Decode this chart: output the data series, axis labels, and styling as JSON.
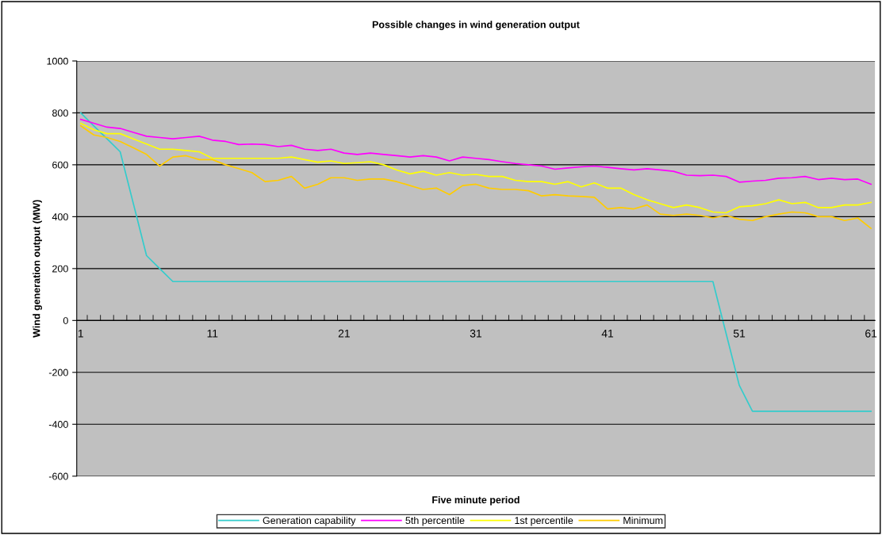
{
  "chart_data": {
    "type": "line",
    "title": "Possible changes in wind generation output",
    "xlabel": "Five minute period",
    "ylabel": "Wind generation output (MW)",
    "categories": [
      "1",
      null,
      null,
      null,
      null,
      null,
      null,
      null,
      null,
      null,
      "11",
      null,
      null,
      null,
      null,
      null,
      null,
      null,
      null,
      null,
      "21",
      null,
      null,
      null,
      null,
      null,
      null,
      null,
      null,
      null,
      "31",
      null,
      null,
      null,
      null,
      null,
      null,
      null,
      null,
      null,
      "41",
      null,
      null,
      null,
      null,
      null,
      null,
      null,
      null,
      null,
      "51",
      null,
      null,
      null,
      null,
      null,
      null,
      null,
      null,
      null,
      "61"
    ],
    "ylim": [
      -600,
      1000
    ],
    "yticks": [
      -600,
      -400,
      -200,
      0,
      200,
      400,
      600,
      800,
      1000
    ],
    "grid": "y",
    "legend": "bottom",
    "marker": "none",
    "line_style": "solid",
    "series": [
      {
        "name": "Generation capability",
        "color": "#33cccc",
        "values": [
          800,
          750,
          700,
          650,
          450,
          250,
          200,
          150,
          150,
          150,
          150,
          150,
          150,
          150,
          150,
          150,
          150,
          150,
          150,
          150,
          150,
          150,
          150,
          150,
          150,
          150,
          150,
          150,
          150,
          150,
          150,
          150,
          150,
          150,
          150,
          150,
          150,
          150,
          150,
          150,
          150,
          150,
          150,
          150,
          150,
          150,
          150,
          150,
          150,
          -50,
          -250,
          -350,
          -350,
          -350,
          -350,
          -350,
          -350,
          -350,
          -350,
          -350,
          -350
        ]
      },
      {
        "name": "5th percentile",
        "color": "#ff00ff",
        "values": [
          775,
          760,
          745,
          740,
          725,
          710,
          705,
          700,
          705,
          710,
          695,
          690,
          678,
          680,
          678,
          670,
          675,
          660,
          655,
          660,
          645,
          640,
          645,
          640,
          635,
          630,
          635,
          630,
          615,
          630,
          625,
          620,
          612,
          605,
          600,
          595,
          583,
          588,
          592,
          595,
          590,
          585,
          580,
          585,
          580,
          575,
          560,
          558,
          560,
          555,
          533,
          537,
          540,
          548,
          550,
          555,
          543,
          548,
          543,
          545,
          525
        ]
      },
      {
        "name": "1st percentile",
        "color": "#ffff00",
        "values": [
          760,
          735,
          720,
          720,
          700,
          680,
          660,
          660,
          655,
          650,
          625,
          625,
          625,
          625,
          625,
          625,
          630,
          620,
          610,
          615,
          605,
          608,
          612,
          600,
          580,
          565,
          575,
          560,
          570,
          560,
          563,
          555,
          555,
          540,
          535,
          535,
          525,
          535,
          515,
          530,
          510,
          510,
          485,
          465,
          450,
          435,
          445,
          435,
          418,
          415,
          438,
          442,
          450,
          465,
          450,
          455,
          435,
          435,
          445,
          445,
          455
        ]
      },
      {
        "name": "Minimum",
        "color": "#ffcc00",
        "values": [
          750,
          715,
          705,
          690,
          665,
          640,
          595,
          630,
          635,
          620,
          620,
          600,
          585,
          570,
          535,
          540,
          555,
          510,
          525,
          550,
          550,
          540,
          545,
          545,
          535,
          520,
          505,
          510,
          485,
          520,
          525,
          510,
          505,
          505,
          500,
          480,
          485,
          480,
          478,
          475,
          430,
          435,
          430,
          445,
          410,
          405,
          410,
          405,
          395,
          405,
          390,
          385,
          400,
          410,
          418,
          415,
          400,
          400,
          385,
          395,
          355
        ]
      }
    ]
  }
}
